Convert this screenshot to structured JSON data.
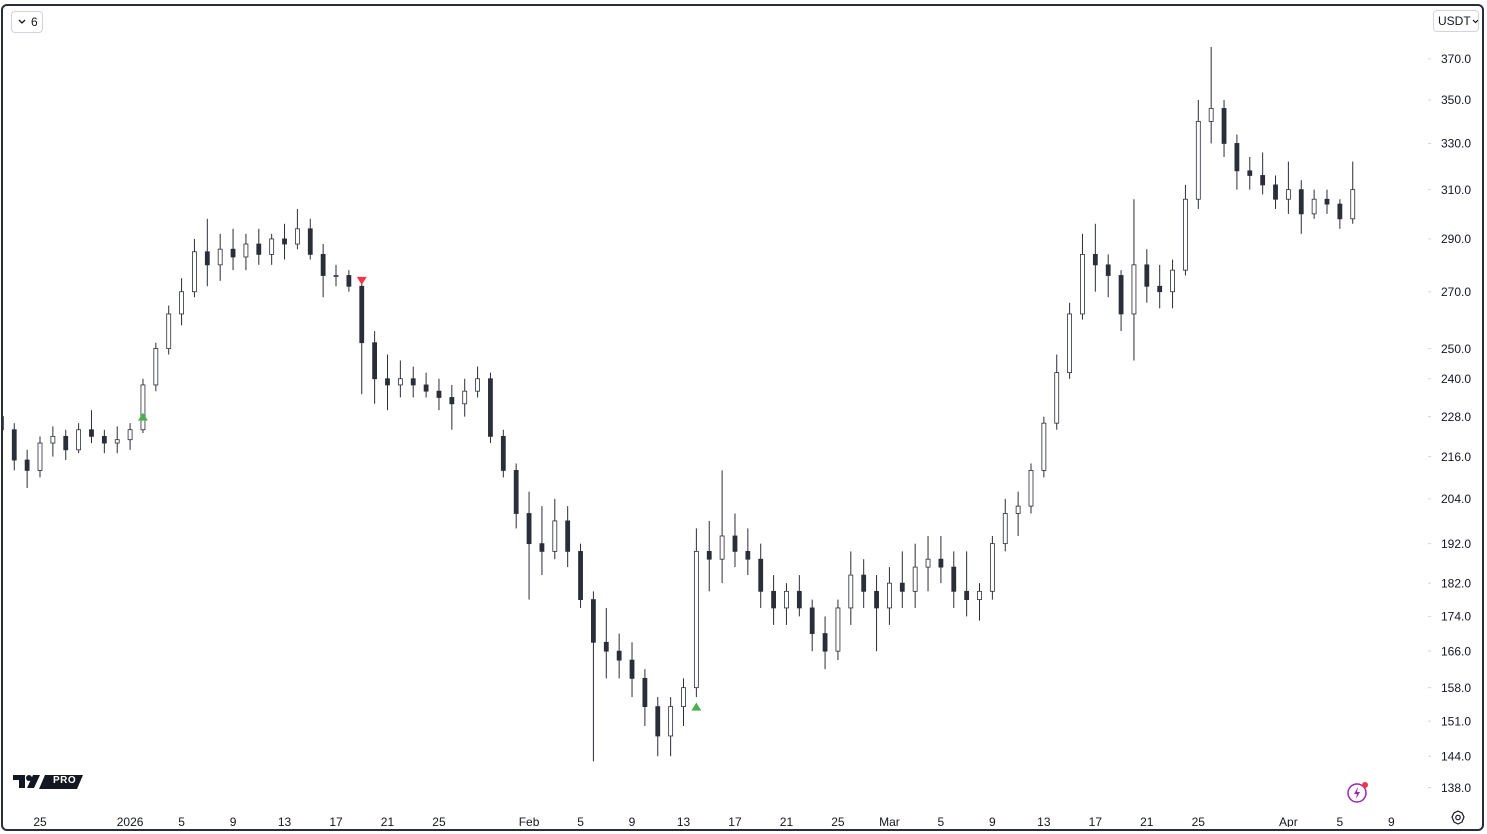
{
  "chart_data": {
    "type": "ohlc",
    "interval_button": "6",
    "currency_button": "USDT",
    "logo_text": "PRO",
    "log_scale": true,
    "color": "#2a2e39",
    "categories": [
      null,
      null,
      null,
      "25",
      null,
      null,
      null,
      null,
      null,
      null,
      "2026",
      null,
      null,
      null,
      "5",
      null,
      null,
      null,
      "9",
      null,
      null,
      null,
      "13",
      null,
      null,
      null,
      "17",
      null,
      null,
      null,
      "21",
      null,
      null,
      null,
      "25",
      null,
      null,
      null,
      null,
      null,
      null,
      "Feb",
      null,
      null,
      null,
      "5",
      null,
      null,
      null,
      "9",
      null,
      null,
      null,
      "13",
      null,
      null,
      null,
      "17",
      null,
      null,
      null,
      "21",
      null,
      null,
      null,
      "25",
      null,
      null,
      null,
      "Mar",
      null,
      null,
      null,
      "5",
      null,
      null,
      null,
      "9",
      null,
      null,
      null,
      "13",
      null,
      null,
      null,
      "17",
      null,
      null,
      null,
      "21",
      null,
      null,
      null,
      "25",
      null,
      null,
      null,
      null,
      null,
      null,
      "Apr",
      null,
      null,
      null,
      "5",
      null,
      null,
      null,
      "9"
    ],
    "ohlc": [
      [
        228,
        232,
        220,
        224
      ],
      [
        224,
        226,
        212,
        215
      ],
      [
        215,
        218,
        207,
        212
      ],
      [
        212,
        222,
        210,
        220
      ],
      [
        220,
        225,
        216,
        222
      ],
      [
        222,
        224,
        215,
        218
      ],
      [
        218,
        226,
        217,
        224
      ],
      [
        224,
        230,
        220,
        222
      ],
      [
        222,
        224,
        217,
        220
      ],
      [
        220,
        225,
        217,
        221
      ],
      [
        221,
        226,
        218,
        224
      ],
      [
        224,
        240,
        223,
        238
      ],
      [
        238,
        252,
        236,
        250
      ],
      [
        250,
        265,
        248,
        262
      ],
      [
        262,
        275,
        258,
        270
      ],
      [
        270,
        290,
        268,
        285
      ],
      [
        285,
        298,
        272,
        280
      ],
      [
        280,
        292,
        274,
        286
      ],
      [
        286,
        294,
        278,
        283
      ],
      [
        283,
        292,
        278,
        288
      ],
      [
        288,
        294,
        280,
        284
      ],
      [
        284,
        292,
        280,
        290
      ],
      [
        290,
        296,
        282,
        288
      ],
      [
        288,
        302,
        286,
        294
      ],
      [
        294,
        298,
        282,
        284
      ],
      [
        284,
        288,
        268,
        276
      ],
      [
        276,
        280,
        272,
        276
      ],
      [
        276,
        278,
        270,
        272
      ],
      [
        272,
        274,
        235,
        252
      ],
      [
        252,
        256,
        232,
        240
      ],
      [
        240,
        248,
        230,
        238
      ],
      [
        238,
        246,
        234,
        240
      ],
      [
        240,
        244,
        234,
        238
      ],
      [
        238,
        242,
        234,
        236
      ],
      [
        236,
        240,
        230,
        234
      ],
      [
        234,
        238,
        224,
        232
      ],
      [
        232,
        240,
        228,
        236
      ],
      [
        236,
        244,
        234,
        240
      ],
      [
        240,
        242,
        220,
        222
      ],
      [
        222,
        224,
        210,
        212
      ],
      [
        212,
        214,
        196,
        200
      ],
      [
        200,
        206,
        178,
        192
      ],
      [
        192,
        202,
        184,
        190
      ],
      [
        190,
        204,
        188,
        198
      ],
      [
        198,
        202,
        186,
        190
      ],
      [
        190,
        192,
        176,
        178
      ],
      [
        178,
        180,
        143,
        168
      ],
      [
        168,
        176,
        160,
        166
      ],
      [
        166,
        170,
        160,
        164
      ],
      [
        164,
        168,
        156,
        160
      ],
      [
        160,
        162,
        150,
        154
      ],
      [
        154,
        156,
        144,
        148
      ],
      [
        148,
        156,
        144,
        154
      ],
      [
        154,
        160,
        150,
        158
      ],
      [
        158,
        196,
        156,
        190
      ],
      [
        190,
        198,
        180,
        188
      ],
      [
        188,
        212,
        182,
        194
      ],
      [
        194,
        200,
        186,
        190
      ],
      [
        190,
        196,
        184,
        188
      ],
      [
        188,
        192,
        176,
        180
      ],
      [
        180,
        184,
        172,
        176
      ],
      [
        176,
        182,
        172,
        180
      ],
      [
        180,
        184,
        174,
        176
      ],
      [
        176,
        178,
        166,
        170
      ],
      [
        170,
        174,
        162,
        166
      ],
      [
        166,
        178,
        164,
        176
      ],
      [
        176,
        190,
        172,
        184
      ],
      [
        184,
        188,
        176,
        180
      ],
      [
        180,
        184,
        166,
        176
      ],
      [
        176,
        186,
        172,
        182
      ],
      [
        182,
        190,
        176,
        180
      ],
      [
        180,
        192,
        176,
        186
      ],
      [
        186,
        194,
        180,
        188
      ],
      [
        188,
        194,
        182,
        186
      ],
      [
        186,
        190,
        176,
        180
      ],
      [
        180,
        190,
        174,
        178
      ],
      [
        178,
        182,
        173,
        180
      ],
      [
        180,
        194,
        178,
        192
      ],
      [
        192,
        204,
        190,
        200
      ],
      [
        200,
        206,
        194,
        202
      ],
      [
        202,
        214,
        200,
        212
      ],
      [
        212,
        228,
        210,
        226
      ],
      [
        226,
        248,
        224,
        242
      ],
      [
        242,
        266,
        240,
        262
      ],
      [
        262,
        292,
        260,
        284
      ],
      [
        284,
        296,
        270,
        280
      ],
      [
        280,
        284,
        268,
        276
      ],
      [
        276,
        278,
        256,
        262
      ],
      [
        262,
        306,
        246,
        280
      ],
      [
        280,
        286,
        266,
        272
      ],
      [
        272,
        280,
        264,
        270
      ],
      [
        270,
        282,
        264,
        278
      ],
      [
        278,
        312,
        276,
        306
      ],
      [
        306,
        350,
        302,
        340
      ],
      [
        340,
        376,
        330,
        346
      ],
      [
        346,
        350,
        324,
        330
      ],
      [
        330,
        334,
        310,
        318
      ],
      [
        318,
        324,
        310,
        316
      ],
      [
        316,
        326,
        308,
        312
      ],
      [
        312,
        316,
        302,
        306
      ],
      [
        306,
        322,
        300,
        310
      ],
      [
        310,
        314,
        292,
        300
      ],
      [
        300,
        310,
        298,
        306
      ],
      [
        306,
        310,
        300,
        304
      ],
      [
        304,
        306,
        294,
        298
      ],
      [
        298,
        322,
        296,
        310
      ],
      null,
      null,
      null
    ],
    "markers": [
      {
        "x": 11,
        "value": 228,
        "shape": "triangle-up",
        "color": "#4caf50"
      },
      {
        "x": 28,
        "value": 274,
        "shape": "triangle-down",
        "color": "#f23645"
      },
      {
        "x": 54,
        "value": 154,
        "shape": "triangle-up",
        "color": "#4caf50"
      }
    ],
    "ylim": [
      134.8,
      398
    ],
    "yticks": [
      {
        "value": 370,
        "label": "370.0"
      },
      {
        "value": 350,
        "label": "350.0"
      },
      {
        "value": 330,
        "label": "330.0"
      },
      {
        "value": 310,
        "label": "310.0"
      },
      {
        "value": 290,
        "label": "290.0"
      },
      {
        "value": 270,
        "label": "270.0"
      },
      {
        "value": 250,
        "label": "250.0"
      },
      {
        "value": 240,
        "label": "240.0"
      },
      {
        "value": 228,
        "label": "228.0"
      },
      {
        "value": 216,
        "label": "216.0"
      },
      {
        "value": 204,
        "label": "204.0"
      },
      {
        "value": 192,
        "label": "192.0"
      },
      {
        "value": 182,
        "label": "182.0"
      },
      {
        "value": 174,
        "label": "174.0"
      },
      {
        "value": 166,
        "label": "166.0"
      },
      {
        "value": 158,
        "label": "158.0"
      },
      {
        "value": 151,
        "label": "151.0"
      },
      {
        "value": 144,
        "label": "144.0"
      },
      {
        "value": 138,
        "label": "138.0"
      }
    ],
    "grid": false
  }
}
